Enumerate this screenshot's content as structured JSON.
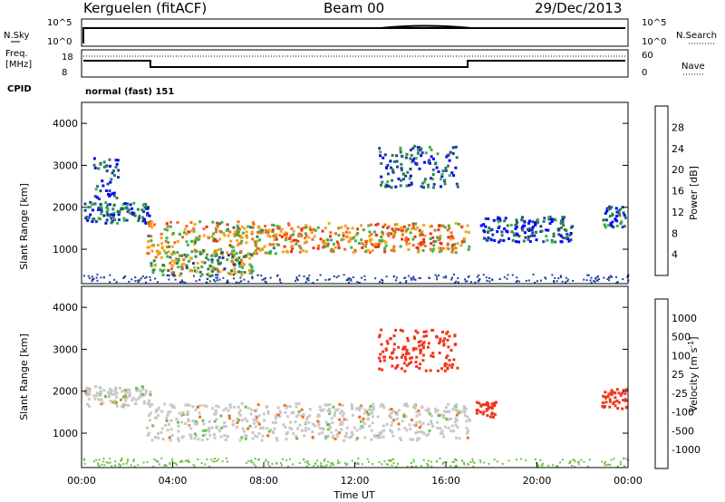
{
  "header": {
    "radar": "Kerguelen (fitACF)",
    "beam": "Beam 00",
    "date": "29/Dec/2013"
  },
  "nsky_panel": {
    "left_label": "N.Sky",
    "right_label": "N.Search",
    "ticks_left": [
      "10^5",
      "10^0"
    ],
    "ticks_right": [
      "10^5",
      "10^0"
    ]
  },
  "freq_panel": {
    "left_label_1": "Freq.",
    "left_label_2": "[MHz]",
    "right_label": "Nave",
    "ticks_left": [
      "18",
      "8"
    ],
    "ticks_right": [
      "60",
      "0"
    ]
  },
  "cpid": {
    "label": "CPID",
    "value": "normal (fast) 151"
  },
  "colors": {
    "power_scale": [
      "#0000ff",
      "#1f3f9f",
      "#2e7d55",
      "#3cb44b",
      "#f7a21b",
      "#f26a1b",
      "#e43418",
      "#ff0000"
    ],
    "velocity_scale": [
      "#ff0000",
      "#f0361b",
      "#f2701b",
      "#f5a623",
      "#c8c8c8",
      "#c8c8c8",
      "#6cc24a",
      "#2e8b57",
      "#1f4f9f",
      "#1f3fbf"
    ]
  },
  "chart_data": [
    {
      "type": "heatmap",
      "name": "power",
      "ylabel": "Slant Range [km]",
      "xlabel": "",
      "ylim": [
        180,
        4500
      ],
      "xlim": [
        0,
        24
      ],
      "y_ticks": [
        "1000",
        "2000",
        "3000",
        "4000"
      ],
      "colorbar_label": "Power [dB]",
      "colorbar_ticks": [
        "4",
        "8",
        "12",
        "16",
        "20",
        "24",
        "28"
      ],
      "echo_regions": [
        {
          "t0": 0.1,
          "t1": 3.0,
          "r_center": 1900,
          "r_width": 250,
          "intensity": 8
        },
        {
          "t0": 0.5,
          "t1": 1.6,
          "r_center": 2700,
          "r_width": 500,
          "intensity": 6
        },
        {
          "t0": 2.8,
          "t1": 8.5,
          "r_center": 1300,
          "r_width": 400,
          "intensity": 18
        },
        {
          "t0": 3.0,
          "t1": 7.5,
          "r_center": 700,
          "r_width": 300,
          "intensity": 14
        },
        {
          "t0": 8.2,
          "t1": 17.0,
          "r_center": 1300,
          "r_width": 350,
          "intensity": 20
        },
        {
          "t0": 13.0,
          "t1": 16.5,
          "r_center": 3000,
          "r_width": 500,
          "intensity": 7
        },
        {
          "t0": 17.5,
          "t1": 21.5,
          "r_center": 1500,
          "r_width": 300,
          "intensity": 6
        },
        {
          "t0": 22.8,
          "t1": 23.9,
          "r_center": 1800,
          "r_width": 250,
          "intensity": 7
        }
      ]
    },
    {
      "type": "heatmap",
      "name": "velocity",
      "ylabel": "Slant Range [km]",
      "xlabel": "Time UT",
      "ylim": [
        180,
        4500
      ],
      "xlim": [
        0,
        24
      ],
      "y_ticks": [
        "1000",
        "2000",
        "3000",
        "4000"
      ],
      "x_ticks": [
        "00:00",
        "04:00",
        "08:00",
        "12:00",
        "16:00",
        "20:00",
        "00:00"
      ],
      "colorbar_label": "Velocity [m s",
      "colorbar_label_sup": "-1",
      "colorbar_label_end": "]",
      "colorbar_ticks": [
        "1000",
        "500",
        "100",
        "25",
        "-25",
        "-100",
        "-500",
        "-1000"
      ],
      "echo_regions": [
        {
          "t0": 0.1,
          "t1": 3.0,
          "r_center": 1900,
          "r_width": 250,
          "intensity": 0
        },
        {
          "t0": 2.8,
          "t1": 17.0,
          "r_center": 1300,
          "r_width": 450,
          "intensity": 0
        },
        {
          "t0": 13.0,
          "t1": 16.5,
          "r_center": 3000,
          "r_width": 500,
          "intensity": -150
        },
        {
          "t0": 17.3,
          "t1": 18.2,
          "r_center": 1600,
          "r_width": 200,
          "intensity": -400
        },
        {
          "t0": 22.8,
          "t1": 23.9,
          "r_center": 1850,
          "r_width": 250,
          "intensity": -400
        }
      ]
    }
  ]
}
